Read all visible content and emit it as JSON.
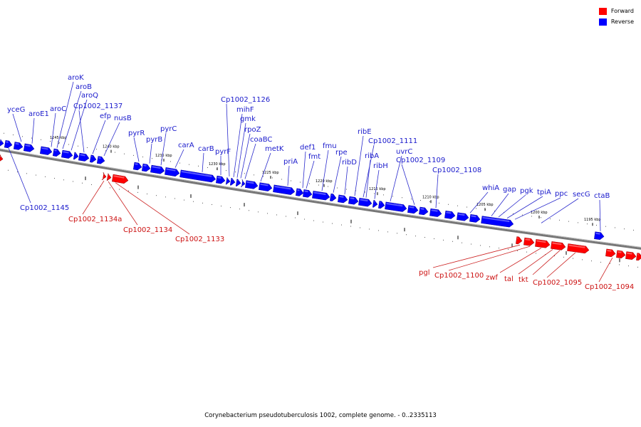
{
  "legend": {
    "forward_label": "Forward",
    "reverse_label": "Reverse",
    "forward_color": "#ff0000",
    "reverse_color": "#0000ff"
  },
  "caption": "Corynebacterium pseudotuberculosis 1002, complete genome. - 0..2335113",
  "ticks": [
    "1245 kbp",
    "1240 kbp",
    "1235 kbp",
    "1230 kbp",
    "1225 kbp",
    "1220 kbp",
    "1215 kbp",
    "1210 kbp",
    "1205 kbp",
    "1200 kbp",
    "1195 kbp"
  ],
  "reverse_genes": [
    "yceG",
    "aroE1",
    "aroC",
    "aroK",
    "aroB",
    "aroQ",
    "Cp1002_1137",
    "efp",
    "nusB",
    "pyrR",
    "pyrB",
    "pyrC",
    "carA",
    "carB",
    "pyrF",
    "Cp1002_1126",
    "mihF",
    "gmk",
    "rpoZ",
    "coaBC",
    "metK",
    "priA",
    "def1",
    "fmt",
    "fmu",
    "rpe",
    "ribD",
    "ribE",
    "Cp1002_1111",
    "ribA",
    "ribH",
    "uvrC",
    "Cp1002_1109",
    "Cp1002_1108",
    "whiA",
    "gap",
    "pgk",
    "tpiA",
    "ppc",
    "secG",
    "ctaB",
    "Cp1002_1145"
  ],
  "forward_genes": [
    "Cp1002_1134a",
    "Cp1002_1134",
    "Cp1002_1133",
    "pgl",
    "Cp1002_1100",
    "zwf",
    "tal",
    "tkt",
    "Cp1002_1095",
    "Cp1002_1094"
  ]
}
